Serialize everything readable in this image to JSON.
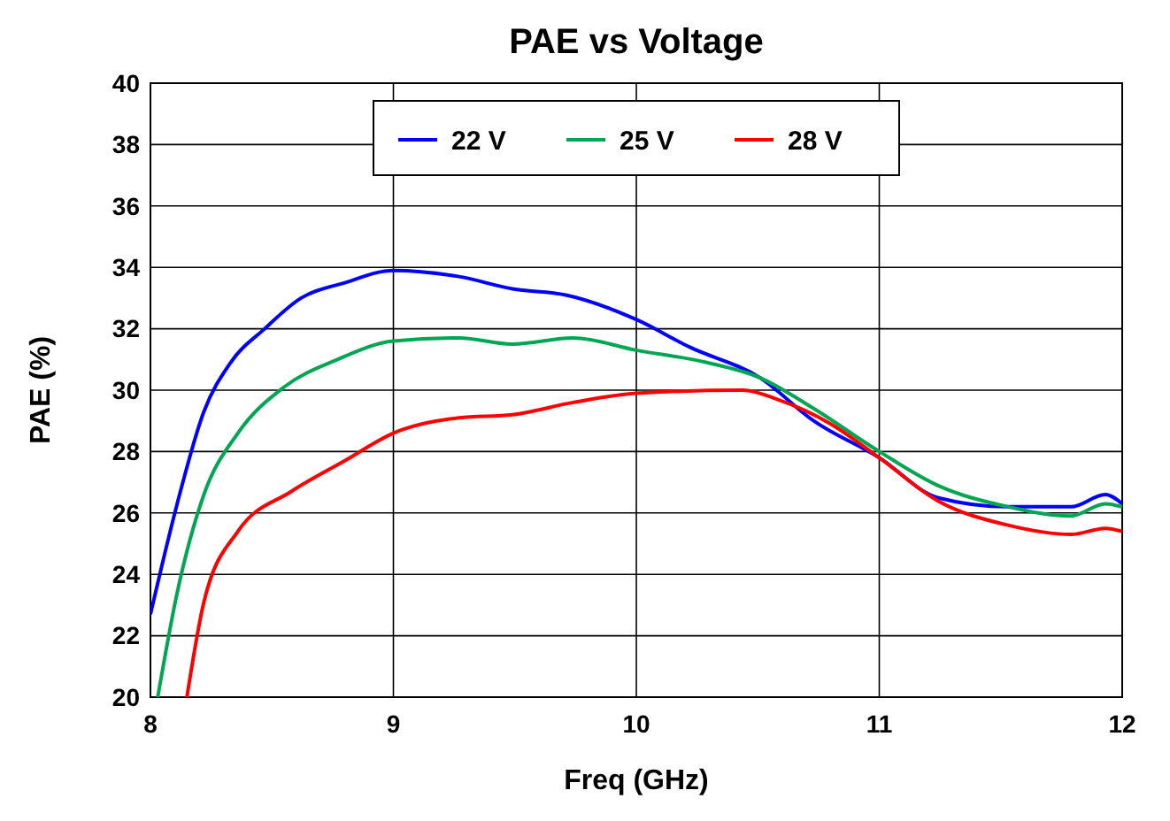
{
  "chart_data": {
    "type": "line",
    "title": "PAE vs Voltage",
    "xlabel": "Freq (GHz)",
    "ylabel": "PAE (%)",
    "xlim": [
      8,
      12
    ],
    "xticks": [
      8,
      9,
      10,
      11,
      12
    ],
    "ylim": [
      20,
      40
    ],
    "yticks": [
      20,
      22,
      24,
      26,
      28,
      30,
      32,
      34,
      36,
      38,
      40
    ],
    "grid": true,
    "legend": "top",
    "series": [
      {
        "name": "22 V",
        "color": "#0000ff",
        "x": [
          8.0,
          8.11,
          8.22,
          8.33,
          8.47,
          8.62,
          8.8,
          9.0,
          9.27,
          9.49,
          9.71,
          10.0,
          10.22,
          10.51,
          10.73,
          11.0,
          11.24,
          11.53,
          11.79,
          11.93,
          12.0
        ],
        "values": [
          22.7,
          26.3,
          29.3,
          30.9,
          32.0,
          33.0,
          33.5,
          33.9,
          33.7,
          33.3,
          33.1,
          32.3,
          31.4,
          30.4,
          29.0,
          27.8,
          26.5,
          26.2,
          26.2,
          26.6,
          26.3
        ]
      },
      {
        "name": "25 V",
        "color": "#00a651",
        "x": [
          8.03,
          8.11,
          8.22,
          8.36,
          8.55,
          8.77,
          9.0,
          9.27,
          9.49,
          9.74,
          10.0,
          10.29,
          10.51,
          10.73,
          11.0,
          11.24,
          11.53,
          11.79,
          11.93,
          12.0
        ],
        "values": [
          20,
          23.4,
          26.6,
          28.6,
          30.1,
          31.0,
          31.6,
          31.7,
          31.5,
          31.7,
          31.3,
          30.9,
          30.4,
          29.4,
          28.0,
          26.9,
          26.2,
          25.9,
          26.3,
          26.2
        ]
      },
      {
        "name": "28 V",
        "color": "#ff0000",
        "x": [
          8.15,
          8.22,
          8.36,
          8.58,
          8.8,
          9.0,
          9.27,
          9.49,
          9.74,
          10.0,
          10.44,
          10.58,
          10.8,
          11.0,
          11.24,
          11.53,
          11.79,
          11.93,
          12.0
        ],
        "values": [
          20,
          23.1,
          25.4,
          26.7,
          27.7,
          28.6,
          29.1,
          29.2,
          29.6,
          29.9,
          30.0,
          29.7,
          28.9,
          27.8,
          26.4,
          25.6,
          25.3,
          25.5,
          25.4
        ]
      }
    ]
  }
}
